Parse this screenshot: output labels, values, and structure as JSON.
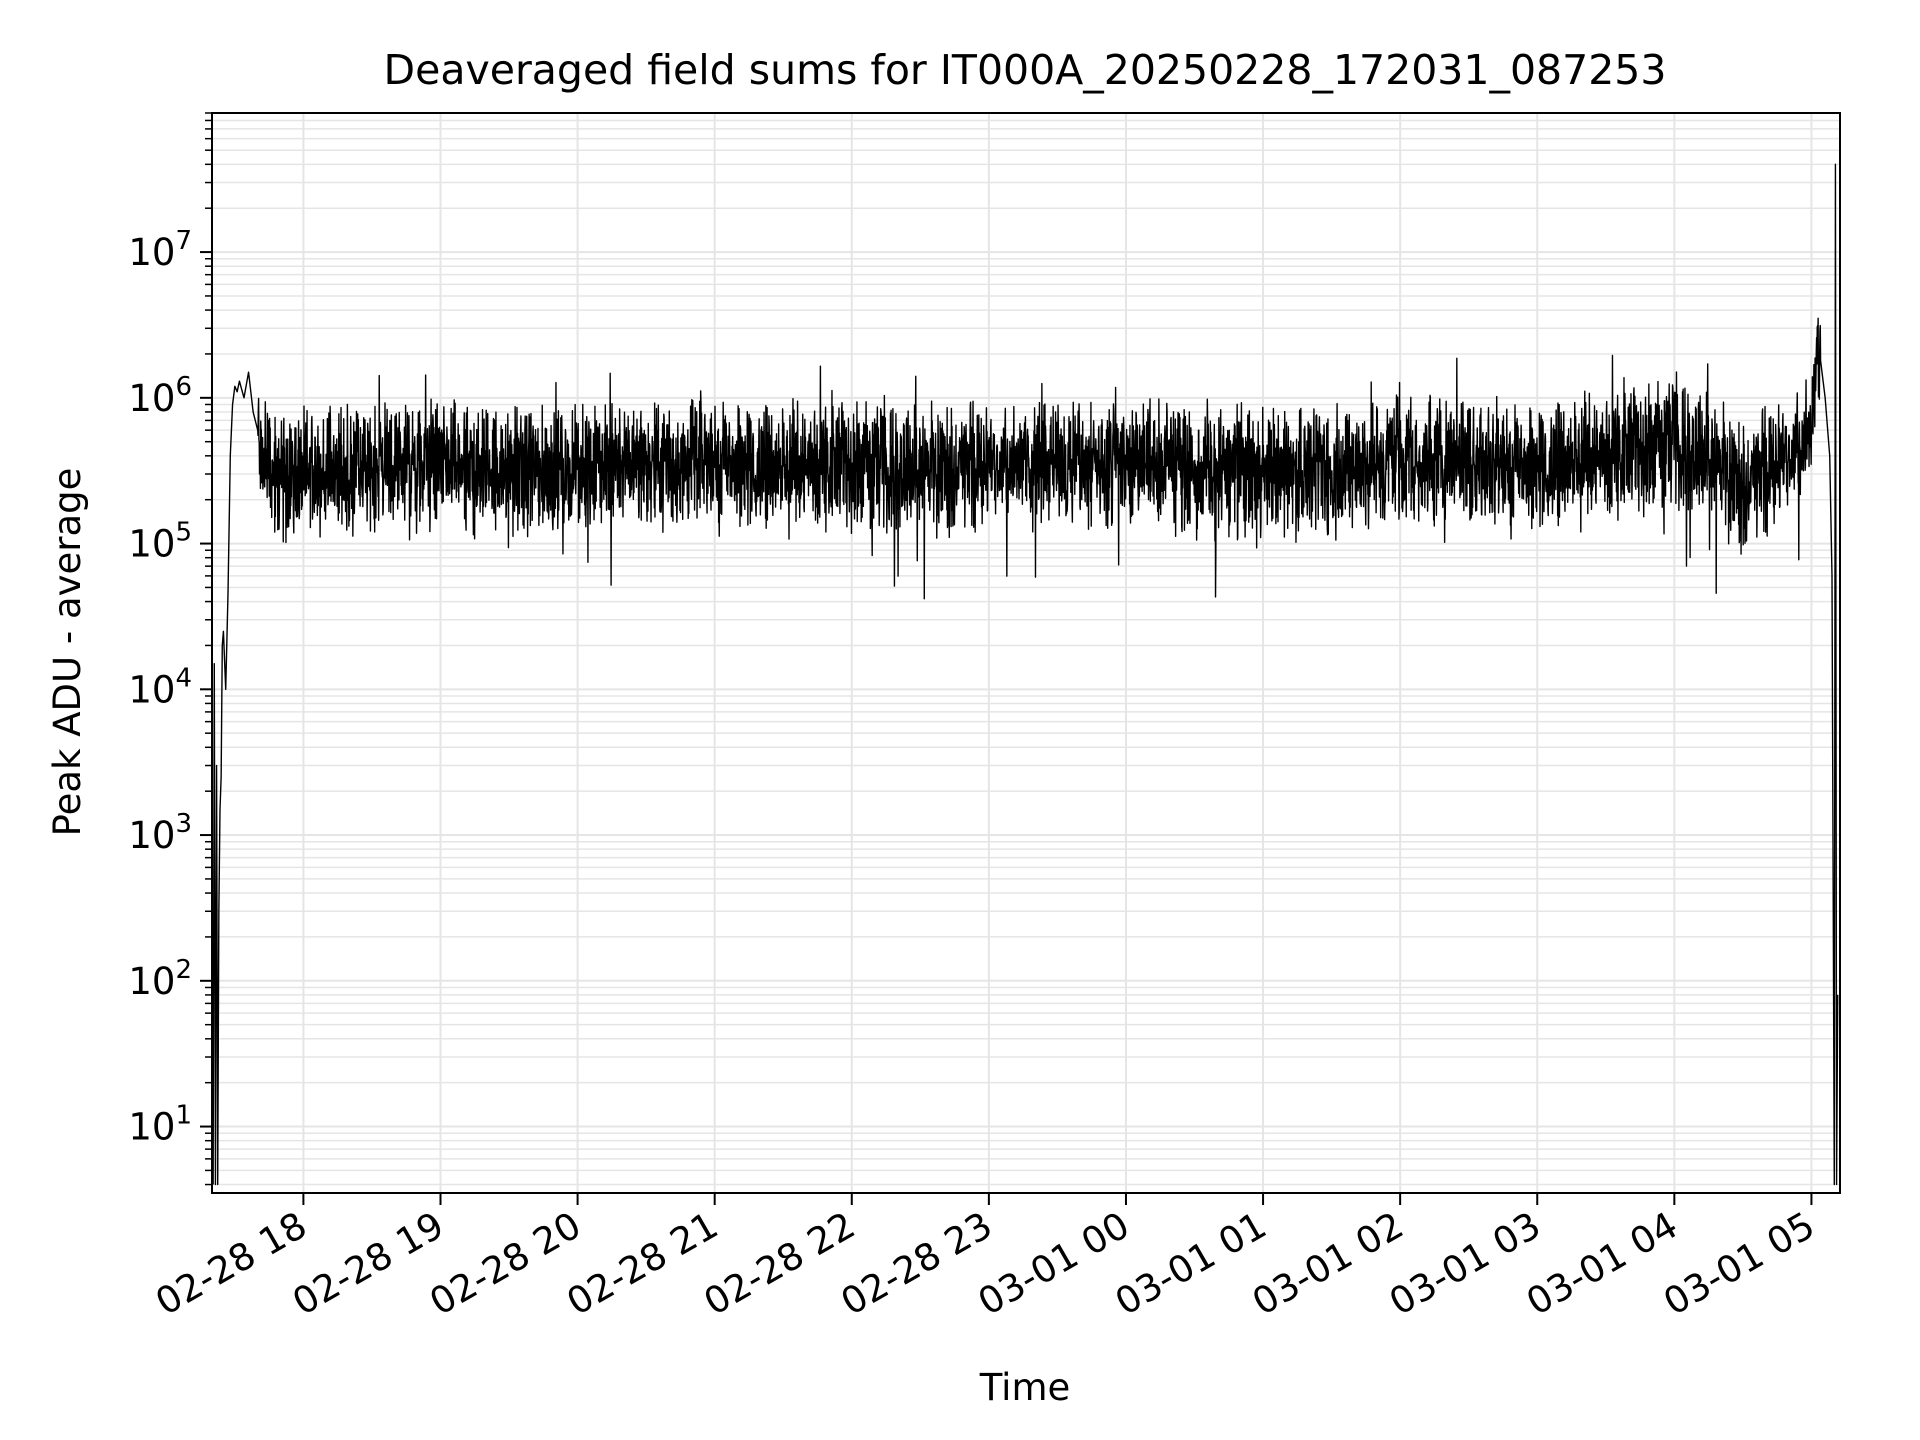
{
  "chart_data": {
    "type": "line",
    "title": "Deaveraged field sums for IT000A_20250228_172031_087253",
    "xlabel": "Time",
    "ylabel": "Peak ADU - average",
    "yscale": "log",
    "ylim": [
      3.5,
      90000000
    ],
    "xlim": [
      "2025-02-28T17:20:00",
      "2025-03-01T05:12:30"
    ],
    "grid": true,
    "line_color": "#000000",
    "grid_color": "#e5e5e5",
    "x_ticks": [
      {
        "t": "2025-02-28T18:00",
        "label": "02-28 18"
      },
      {
        "t": "2025-02-28T19:00",
        "label": "02-28 19"
      },
      {
        "t": "2025-02-28T20:00",
        "label": "02-28 20"
      },
      {
        "t": "2025-02-28T21:00",
        "label": "02-28 21"
      },
      {
        "t": "2025-02-28T22:00",
        "label": "02-28 22"
      },
      {
        "t": "2025-02-28T23:00",
        "label": "02-28 23"
      },
      {
        "t": "2025-03-01T00:00",
        "label": "03-01 00"
      },
      {
        "t": "2025-03-01T01:00",
        "label": "03-01 01"
      },
      {
        "t": "2025-03-01T02:00",
        "label": "03-01 02"
      },
      {
        "t": "2025-03-01T03:00",
        "label": "03-01 03"
      },
      {
        "t": "2025-03-01T04:00",
        "label": "03-01 04"
      },
      {
        "t": "2025-03-01T05:00",
        "label": "03-01 05"
      }
    ],
    "y_ticks": [
      {
        "value": 10,
        "base": "10",
        "exp": "1"
      },
      {
        "value": 100,
        "base": "10",
        "exp": "2"
      },
      {
        "value": 1000,
        "base": "10",
        "exp": "3"
      },
      {
        "value": 10000,
        "base": "10",
        "exp": "4"
      },
      {
        "value": 100000,
        "base": "10",
        "exp": "5"
      },
      {
        "value": 1000000,
        "base": "10",
        "exp": "6"
      },
      {
        "value": 10000000,
        "base": "10",
        "exp": "7"
      }
    ],
    "series": [
      {
        "x": [
          "2025-02-28T17:20:30",
          "2025-02-28T17:21:00",
          "2025-02-28T17:21:30",
          "2025-02-28T17:22:00",
          "2025-02-28T17:22:30",
          "2025-02-28T17:23:00",
          "2025-02-28T17:23:30",
          "2025-02-28T17:24:00",
          "2025-02-28T17:24:30",
          "2025-02-28T17:25:00",
          "2025-02-28T17:26:00",
          "2025-02-28T17:27:00",
          "2025-02-28T17:28:00",
          "2025-02-28T17:29:00",
          "2025-02-28T17:30:00",
          "2025-02-28T17:31:00",
          "2025-02-28T17:32:00",
          "2025-02-28T17:34:00",
          "2025-02-28T17:36:00",
          "2025-02-28T17:38:00",
          "2025-02-28T17:40:00",
          "2025-02-28T17:42:00",
          "2025-02-28T17:44:00",
          "2025-02-28T17:46:00",
          "2025-02-28T17:48:00",
          "2025-02-28T17:50:00",
          "2025-02-28T17:55:00",
          "2025-02-28T18:00:00",
          "2025-02-28T18:15:00",
          "2025-02-28T18:30:00",
          "2025-02-28T18:45:00",
          "2025-02-28T19:00:00",
          "2025-02-28T19:30:00",
          "2025-02-28T20:00:00",
          "2025-02-28T20:30:00",
          "2025-02-28T21:00:00",
          "2025-02-28T21:30:00",
          "2025-02-28T22:00:00",
          "2025-02-28T22:30:00",
          "2025-02-28T23:00:00",
          "2025-02-28T23:30:00",
          "2025-03-01T00:00:00",
          "2025-03-01T00:30:00",
          "2025-03-01T01:00:00",
          "2025-03-01T01:30:00",
          "2025-03-01T02:00:00",
          "2025-03-01T02:30:00",
          "2025-03-01T03:00:00",
          "2025-03-01T03:30:00",
          "2025-03-01T03:45:00",
          "2025-03-01T04:00:00",
          "2025-03-01T04:15:00",
          "2025-03-01T04:30:00",
          "2025-03-01T04:45:00",
          "2025-03-01T04:55:00",
          "2025-03-01T05:00:00",
          "2025-03-01T05:02:00",
          "2025-03-01T05:04:00",
          "2025-03-01T05:06:00",
          "2025-03-01T05:08:00",
          "2025-03-01T05:09:00",
          "2025-03-01T05:10:00",
          "2025-03-01T05:10:30",
          "2025-03-01T05:11:00",
          "2025-03-01T05:11:30"
        ],
        "y": [
          4,
          15000,
          4,
          3000,
          4,
          300,
          1500,
          2500,
          20000,
          25000,
          10000,
          45000,
          400000,
          900000,
          1200000,
          1100000,
          1300000,
          1000000,
          1500000,
          800000,
          600000,
          350000,
          400000,
          300000,
          250000,
          280000,
          300000,
          320000,
          300000,
          330000,
          340000,
          350000,
          300000,
          330000,
          350000,
          380000,
          340000,
          350000,
          330000,
          340000,
          350000,
          360000,
          300000,
          320000,
          300000,
          400000,
          380000,
          350000,
          400000,
          450000,
          500000,
          400000,
          250000,
          350000,
          450000,
          600000,
          1500000,
          1800000,
          1000000,
          400000,
          60000,
          4,
          40000000,
          4,
          80
        ],
        "noise_amplitude_decades": 0.9,
        "noise_from": "2025-02-28T17:40:00",
        "noise_to": "2025-03-01T05:05:00"
      }
    ]
  }
}
